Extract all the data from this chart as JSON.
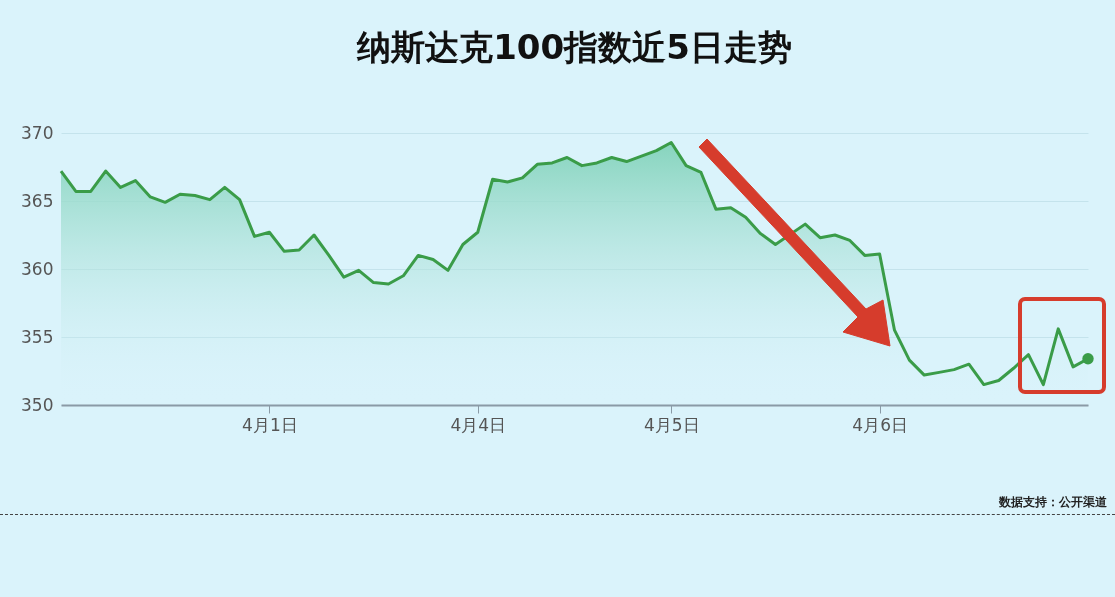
{
  "chart_data": {
    "type": "area",
    "title": "纳斯达克100指数近5日走势",
    "annotations": [
      "数据支持：公开渠道"
    ],
    "categories": [
      null,
      null,
      null,
      null,
      null,
      null,
      null,
      null,
      null,
      null,
      null,
      null,
      null,
      null,
      "4月1日",
      null,
      null,
      null,
      null,
      null,
      null,
      null,
      null,
      null,
      null,
      null,
      null,
      null,
      "4月4日",
      null,
      null,
      null,
      null,
      null,
      null,
      null,
      null,
      null,
      null,
      null,
      null,
      "4月5日",
      null,
      null,
      null,
      null,
      null,
      null,
      null,
      null,
      null,
      null,
      null,
      null,
      null,
      "4月6日",
      null,
      null,
      null,
      null,
      null,
      null,
      null,
      null,
      null,
      null,
      null,
      null,
      null,
      null
    ],
    "series": [
      {
        "color": "#3a9c48",
        "values": [
          367.2,
          365.7,
          365.7,
          367.2,
          366.0,
          366.5,
          365.3,
          364.9,
          365.5,
          365.4,
          365.1,
          366.0,
          365.1,
          362.4,
          362.7,
          361.3,
          361.4,
          362.5,
          361.0,
          359.4,
          359.9,
          359.0,
          358.9,
          359.5,
          361.0,
          360.7,
          359.9,
          361.8,
          362.7,
          366.6,
          366.4,
          366.7,
          367.7,
          367.8,
          368.2,
          367.6,
          367.8,
          368.2,
          367.9,
          368.3,
          368.7,
          369.3,
          367.6,
          367.1,
          364.4,
          364.5,
          363.8,
          362.6,
          361.8,
          null,
          363.3,
          362.3,
          362.5,
          362.1,
          361.0,
          361.1,
          355.5,
          353.3,
          352.2,
          352.4,
          352.6,
          353.0,
          351.5,
          351.8,
          352.7,
          353.7,
          351.5,
          355.6,
          352.8,
          353.4
        ]
      },
      {
        "type": "scatter",
        "color": "#3a9c48",
        "values": [
          null,
          null,
          null,
          null,
          null,
          null,
          null,
          null,
          null,
          null,
          null,
          null,
          null,
          null,
          null,
          null,
          null,
          null,
          null,
          null,
          null,
          null,
          null,
          null,
          null,
          null,
          null,
          null,
          null,
          null,
          null,
          null,
          null,
          null,
          null,
          null,
          null,
          null,
          null,
          null,
          null,
          null,
          null,
          null,
          null,
          null,
          null,
          null,
          null,
          null,
          null,
          null,
          null,
          null,
          null,
          null,
          null,
          null,
          null,
          null,
          null,
          null,
          null,
          null,
          null,
          null,
          null,
          null,
          null,
          353.4
        ]
      }
    ],
    "ylim": [
      350,
      370
    ],
    "yticks": [
      350,
      355,
      360,
      365,
      370
    ],
    "grid": "y"
  }
}
